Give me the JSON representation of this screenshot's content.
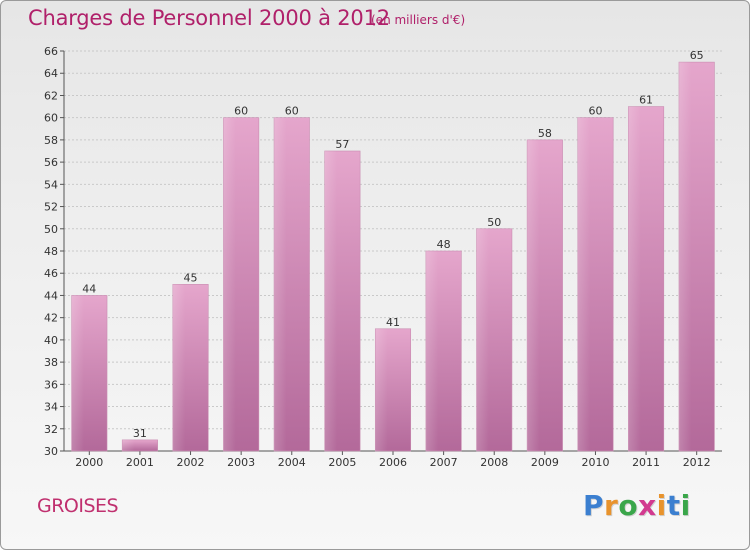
{
  "header": {
    "title": "Charges de Personnel 2000 à 2012",
    "subtitle": "(en milliers d'€)"
  },
  "footer": {
    "commune": "GROISES",
    "logo_letters": [
      "P",
      "r",
      "o",
      "x",
      "i",
      "t",
      "i"
    ],
    "logo_colors": [
      "#3b7fd0",
      "#e8932c",
      "#3aa64a",
      "#d23a8f",
      "#e8932c",
      "#3b7fd0",
      "#3aa64a"
    ]
  },
  "colors": {
    "bar_top": "#e5a6cc",
    "bar_bottom": "#b3699a",
    "accent": "#b0206a"
  },
  "chart_data": {
    "type": "bar",
    "categories": [
      "2000",
      "2001",
      "2002",
      "2003",
      "2004",
      "2005",
      "2006",
      "2007",
      "2008",
      "2009",
      "2010",
      "2011",
      "2012"
    ],
    "values": [
      44,
      31,
      45,
      60,
      60,
      57,
      41,
      48,
      50,
      58,
      60,
      61,
      65
    ],
    "ylim": [
      30,
      66
    ],
    "yticks": [
      30,
      32,
      34,
      36,
      38,
      40,
      42,
      44,
      46,
      48,
      50,
      52,
      54,
      56,
      58,
      60,
      62,
      64,
      66
    ],
    "grid": true
  }
}
